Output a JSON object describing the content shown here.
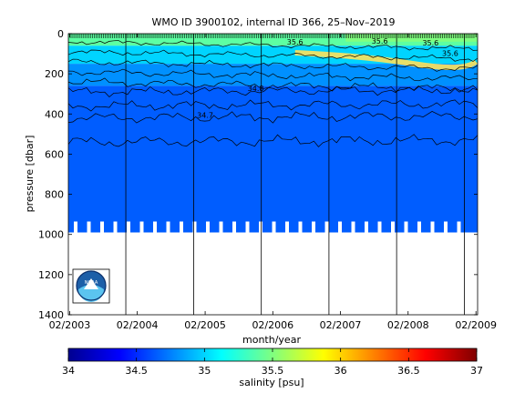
{
  "chart_data": [
    {
      "type": "heatmap",
      "title": "WMO ID 3900102, internal ID 366, 25–Nov–2019",
      "xlabel": "month/year",
      "ylabel": "pressure [dbar]",
      "x_range": [
        "2003-01-25",
        "2009-02-10"
      ],
      "ylim": [
        0,
        1400
      ],
      "y_axis_reversed": true,
      "x_tick_labels": [
        "02/2003",
        "02/2004",
        "02/2005",
        "02/2006",
        "02/2007",
        "02/2008",
        "02/2009"
      ],
      "y_tick_labels": [
        "0",
        "200",
        "400",
        "600",
        "800",
        "1000",
        "1200",
        "1400"
      ],
      "y_ticks": [
        0,
        200,
        400,
        600,
        800,
        1000,
        1200,
        1400
      ],
      "vertical_marker_dates": [
        "2003-12-01",
        "2004-12-01",
        "2005-12-01",
        "2006-12-01",
        "2007-12-01",
        "2008-12-01"
      ],
      "profile_depth_dbar": 990,
      "contour_labels": [
        {
          "text": "35.6",
          "date": "2007-09-01",
          "pressure": 50
        },
        {
          "text": "35.6",
          "date": "2008-06-01",
          "pressure": 60
        },
        {
          "text": "35.6",
          "date": "2008-09-15",
          "pressure": 110
        },
        {
          "text": "34.8",
          "date": "2005-11-01",
          "pressure": 285
        },
        {
          "text": "34.7",
          "date": "2005-02-01",
          "pressure": 420
        },
        {
          "text": "35.6",
          "date": "2006-06-01",
          "pressure": 55
        }
      ],
      "salinity_layers": [
        {
          "top_dbar": 0,
          "bottom_dbar": 60,
          "salinity_psu": 35.4
        },
        {
          "top_dbar": 60,
          "bottom_dbar": 150,
          "salinity_psu": 35.0
        },
        {
          "top_dbar": 150,
          "bottom_dbar": 260,
          "salinity_psu": 34.8
        },
        {
          "top_dbar": 260,
          "bottom_dbar": 990,
          "salinity_psu": 34.65
        }
      ],
      "colorbar": {
        "label": "salinity [psu]",
        "min": 34,
        "max": 37,
        "tick_labels": [
          "34",
          "34.5",
          "35",
          "35.5",
          "36",
          "36.5",
          "37"
        ],
        "ticks": [
          34,
          34.5,
          35,
          35.5,
          36,
          36.5,
          37
        ],
        "colormap": "jet"
      },
      "logo": {
        "text": "NOAA",
        "icon": "noaa-logo-icon"
      }
    }
  ]
}
